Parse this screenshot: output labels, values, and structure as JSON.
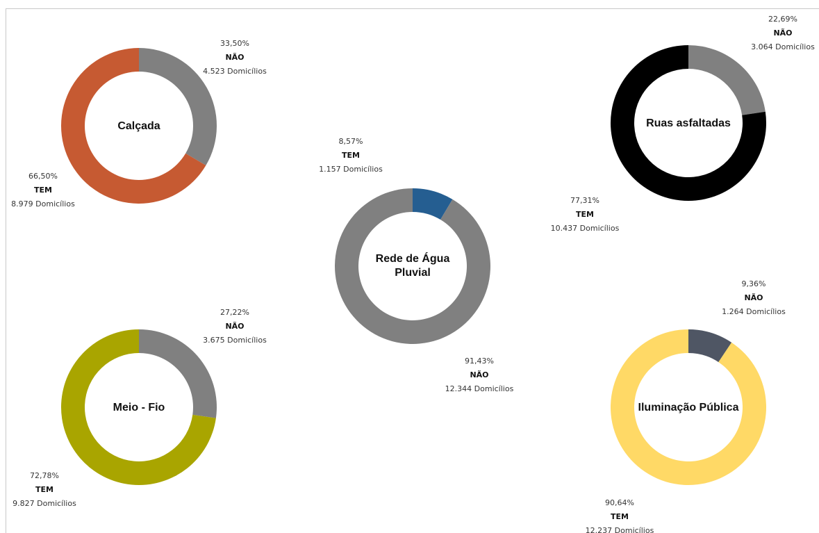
{
  "chart_data": [
    {
      "type": "pie",
      "title": "Calçada",
      "categories": [
        "NÃO",
        "TEM"
      ],
      "values": [
        33.5,
        66.5
      ],
      "households": [
        "4.523 Domicílios",
        "8.979 Domicílios"
      ],
      "percent_labels": [
        "33,50%",
        "66,50%"
      ],
      "colors": [
        "#808080",
        "#c65a32"
      ]
    },
    {
      "type": "pie",
      "title": "Ruas asfaltadas",
      "categories": [
        "NÃO",
        "TEM"
      ],
      "values": [
        22.69,
        77.31
      ],
      "households": [
        "3.064 Domicílios",
        "10.437 Domicílios"
      ],
      "percent_labels": [
        "22,69%",
        "77,31%"
      ],
      "colors": [
        "#808080",
        "#000000"
      ]
    },
    {
      "type": "pie",
      "title": "Rede de Água Pluvial",
      "title_lines": [
        "Rede de Água",
        "Pluvial"
      ],
      "categories": [
        "TEM",
        "NÃO"
      ],
      "values": [
        8.57,
        91.43
      ],
      "households": [
        "1.157 Domicílios",
        "12.344 Domicílios"
      ],
      "percent_labels": [
        "8,57%",
        "91,43%"
      ],
      "colors": [
        "#255e91",
        "#808080"
      ]
    },
    {
      "type": "pie",
      "title": "Meio - Fio",
      "categories": [
        "NÃO",
        "TEM"
      ],
      "values": [
        27.22,
        72.78
      ],
      "households": [
        "3.675 Domicílios",
        "9.827 Domicílios"
      ],
      "percent_labels": [
        "27,22%",
        "72,78%"
      ],
      "colors": [
        "#808080",
        "#a9a500"
      ]
    },
    {
      "type": "pie",
      "title": "Iluminação Pública",
      "categories": [
        "NÃO",
        "TEM"
      ],
      "values": [
        9.36,
        90.64
      ],
      "households": [
        "1.264 Domicílios",
        "12.237 Domicílios"
      ],
      "percent_labels": [
        "9,36%",
        "90,64%"
      ],
      "colors": [
        "#4f5664",
        "#ffd966"
      ]
    }
  ]
}
